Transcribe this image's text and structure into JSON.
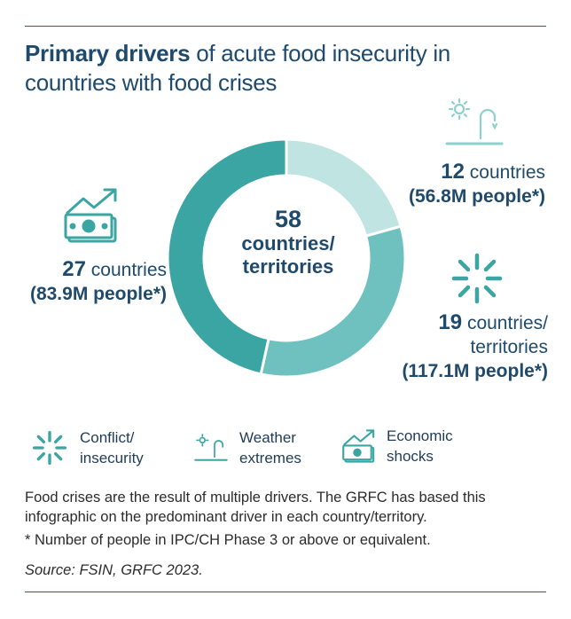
{
  "title": {
    "bold_part": "Primary drivers",
    "rest_line1": " of acute food insecurity in",
    "line2": "countries with food crises"
  },
  "center": {
    "number": "58",
    "label_line1": "countries/",
    "label_line2": "territories"
  },
  "callouts": {
    "weather": {
      "count": "12",
      "unit": " countries",
      "people": "(56.8M people*)"
    },
    "conflict": {
      "count": "19",
      "unit": " countries/",
      "unit2": "territories",
      "people": "(117.1M people*)"
    },
    "economic": {
      "count": "27",
      "unit": " countries",
      "people": "(83.9M people*)"
    }
  },
  "legend": [
    {
      "icon": "conflict-icon",
      "line1": "Conflict/",
      "line2": "insecurity"
    },
    {
      "icon": "weather-icon",
      "line1": "Weather",
      "line2": "extremes"
    },
    {
      "icon": "economic-icon",
      "line1": "Economic",
      "line2": "shocks"
    }
  ],
  "notes": {
    "line1": "Food crises are the result of multiple drivers. The GRFC has based this",
    "line2": "infographic on the predominant driver in each country/territory.",
    "footnote": "* Number of people in IPC/CH Phase 3 or above or equivalent.",
    "source": "Source: FSIN, GRFC 2023."
  },
  "colors": {
    "weather": "#bfe4e2",
    "conflict": "#6fc1bf",
    "economic": "#3aa5a2",
    "text": "#1f4a6b"
  },
  "chart_data": {
    "type": "pie",
    "categories": [
      "Weather extremes",
      "Conflict/insecurity",
      "Economic shocks"
    ],
    "values": [
      12,
      19,
      27
    ],
    "total": 58,
    "people_millions": [
      56.8,
      117.1,
      83.9
    ],
    "title": "Primary drivers of acute food insecurity in countries with food crises"
  }
}
